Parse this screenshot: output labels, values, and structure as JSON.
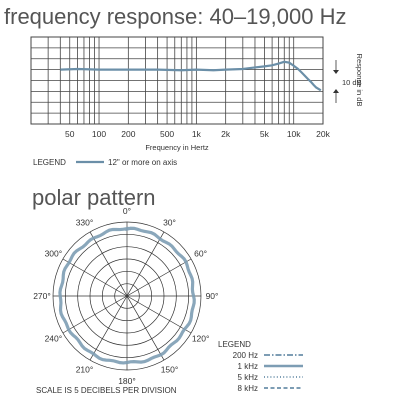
{
  "chart_data": [
    {
      "type": "line",
      "title": "frequency response: 40–19,000 Hz",
      "xlabel": "Frequency in Hertz",
      "ylabel": "Response in dB",
      "x_scale": "log",
      "xlim": [
        20,
        20000
      ],
      "ylim": [
        -25,
        15
      ],
      "x_ticks": [
        50,
        100,
        200,
        500,
        1000,
        2000,
        5000,
        10000,
        20000
      ],
      "x_tick_labels": [
        "50",
        "100",
        "200",
        "500",
        "1k",
        "2k",
        "5k",
        "10k",
        "20k"
      ],
      "scale_annotation": "10 dB",
      "legend_label": "LEGEND",
      "series": [
        {
          "name": "12\" or more on axis",
          "color": "#6b8fa8",
          "x": [
            40,
            60,
            100,
            200,
            400,
            700,
            1000,
            1500,
            2000,
            3000,
            4000,
            5000,
            6000,
            7000,
            8000,
            9000,
            10000,
            11000,
            12000,
            13000,
            14000,
            15000,
            16000,
            17000,
            19000
          ],
          "y": [
            0.0,
            0.3,
            0.0,
            0.0,
            0.0,
            -0.3,
            0.0,
            -0.3,
            0.0,
            0.3,
            1.0,
            1.5,
            2.0,
            2.8,
            3.6,
            3.2,
            1.8,
            0.4,
            -1.2,
            -2.8,
            -4.3,
            -5.6,
            -7.0,
            -8.2,
            -9.5
          ]
        }
      ]
    },
    {
      "type": "polar",
      "title": "polar pattern",
      "angles_deg": [
        0,
        30,
        60,
        90,
        120,
        150,
        180,
        210,
        240,
        270,
        300,
        330
      ],
      "angle_labels": [
        "0°",
        "30°",
        "60°",
        "90°",
        "120°",
        "150°",
        "180°",
        "210°",
        "240°",
        "270°",
        "300°",
        "330°"
      ],
      "rings": 6,
      "scale_note": "SCALE IS 5 DECIBELS PER DIVISION",
      "legend_title": "LEGEND",
      "legend": [
        {
          "label": "200 Hz",
          "style": "dash-dot"
        },
        {
          "label": "1 kHz",
          "style": "solid"
        },
        {
          "label": "5 kHz",
          "style": "dotted"
        },
        {
          "label": "8 kHz",
          "style": "dashed"
        }
      ],
      "pattern": "omnidirectional"
    }
  ]
}
